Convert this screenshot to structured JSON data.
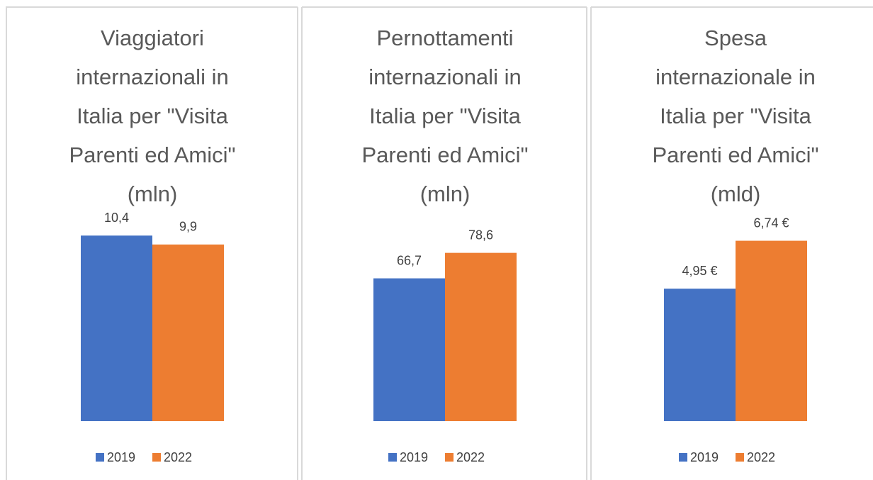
{
  "charts": [
    {
      "type": "bar",
      "title": [
        "Viaggiatori",
        "internazionali in",
        "Italia per \"Visita",
        "Parenti ed Amici\"",
        "(mln)"
      ],
      "series": [
        {
          "name": "2019",
          "color": "#4472c4",
          "values": [
            10.4
          ],
          "value_labels": [
            "10,4"
          ]
        },
        {
          "name": "2022",
          "color": "#ed7d31",
          "values": [
            9.9
          ],
          "value_labels": [
            "9,9"
          ]
        }
      ],
      "ylim": [
        0,
        12
      ]
    },
    {
      "type": "bar",
      "title": [
        "Pernottamenti",
        "internazionali in",
        "Italia per \"Visita",
        "Parenti ed Amici\"",
        "(mln)"
      ],
      "series": [
        {
          "name": "2019",
          "color": "#4472c4",
          "values": [
            66.7
          ],
          "value_labels": [
            "66,7"
          ]
        },
        {
          "name": "2022",
          "color": "#ed7d31",
          "values": [
            78.6
          ],
          "value_labels": [
            "78,6"
          ]
        }
      ],
      "ylim": [
        0,
        100
      ]
    },
    {
      "type": "bar",
      "title": [
        "Spesa",
        "internazionale in",
        "Italia per \"Visita",
        "Parenti ed Amici\"",
        "(mld)"
      ],
      "series": [
        {
          "name": "2019",
          "color": "#4472c4",
          "values": [
            4.95
          ],
          "value_labels": [
            "4,95 €"
          ]
        },
        {
          "name": "2022",
          "color": "#ed7d31",
          "values": [
            6.74
          ],
          "value_labels": [
            "6,74 €"
          ]
        }
      ],
      "ylim": [
        0,
        8
      ]
    }
  ]
}
